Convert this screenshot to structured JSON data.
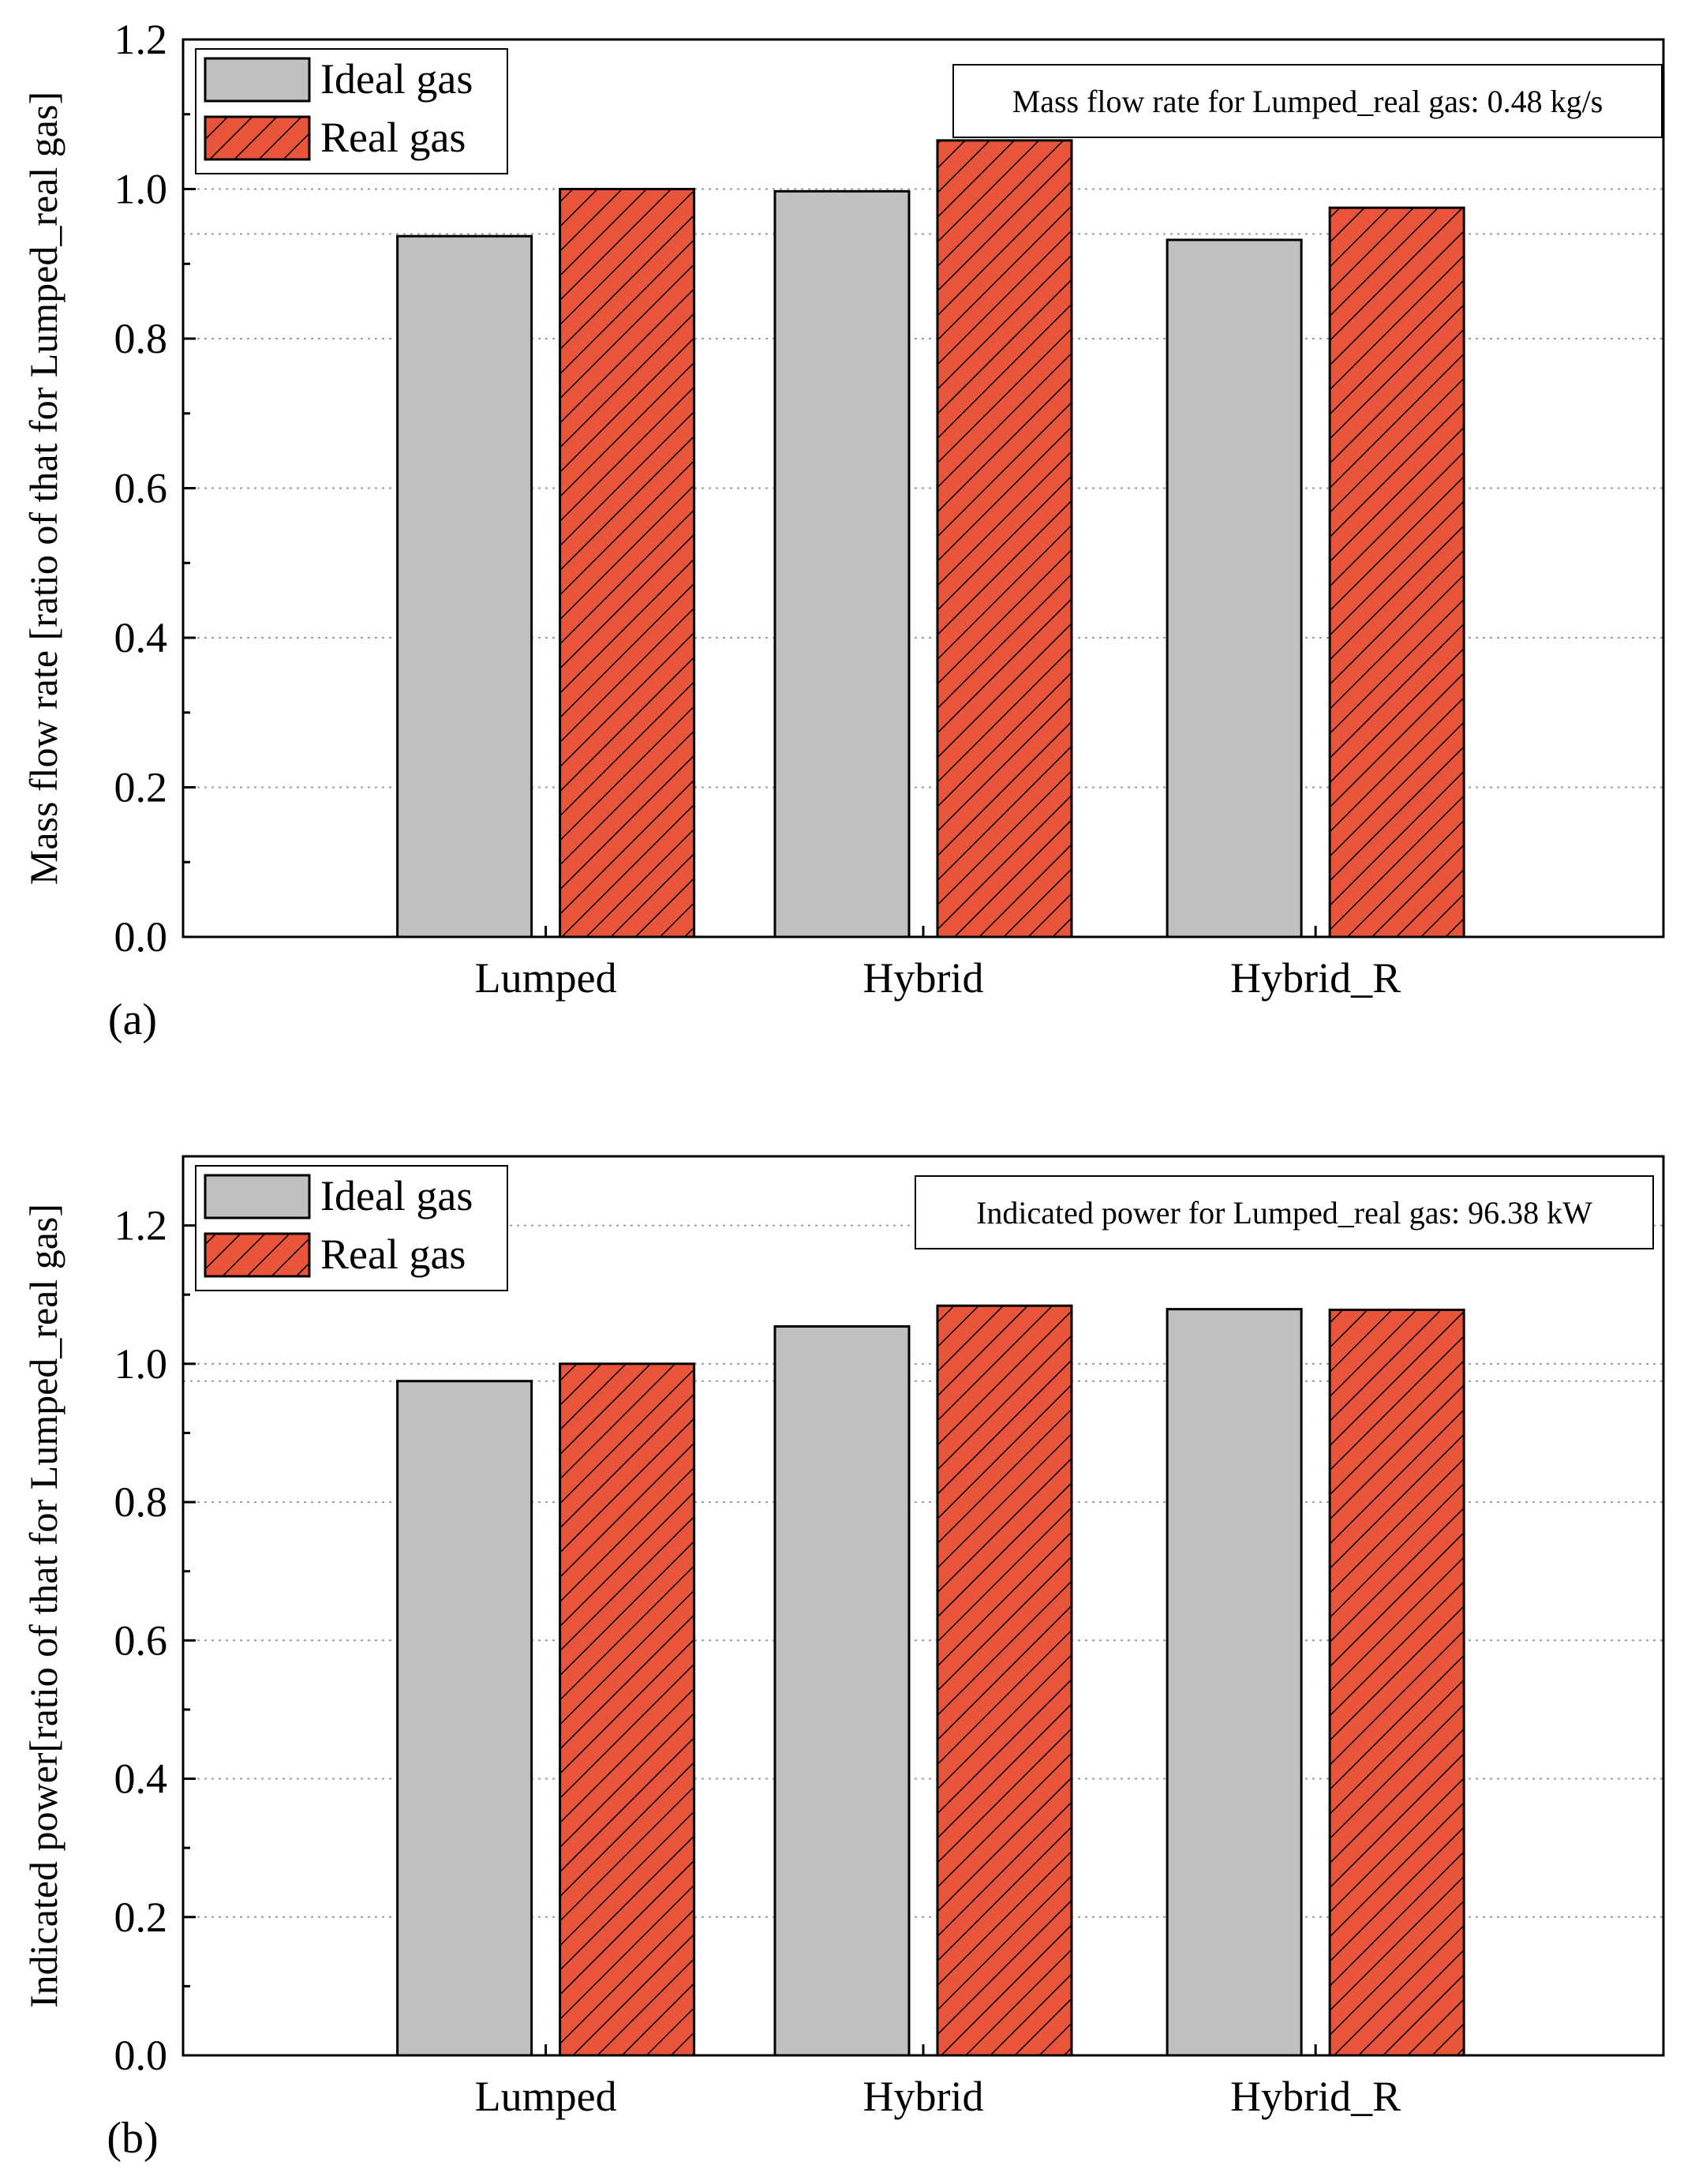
{
  "colors": {
    "ideal": "#c0c0c0",
    "real": "#e8553a",
    "hatch": "#000000",
    "grid": "#9a9a9a",
    "axis": "#000000"
  },
  "chart_data": [
    {
      "type": "bar",
      "panel_label": "(a)",
      "categories": [
        "Lumped",
        "Hybrid",
        "Hybrid_R"
      ],
      "series": [
        {
          "name": "Ideal gas",
          "values": [
            0.937,
            0.997,
            0.932
          ]
        },
        {
          "name": "Real gas",
          "values": [
            1.0,
            1.065,
            0.975
          ]
        }
      ],
      "ylabel": "Mass flow rate [ratio of that for Lumped_real gas]",
      "xlabel": "",
      "ylim": [
        0,
        1.2
      ],
      "yticks": [
        "0.0",
        "0.2",
        "0.4",
        "0.6",
        "0.8",
        "1.0",
        "1.2"
      ],
      "ytick_values": [
        0,
        0.2,
        0.4,
        0.6,
        0.8,
        1.0,
        1.2
      ],
      "grid_values": [
        0.2,
        0.4,
        0.6,
        0.8,
        0.94,
        1.0
      ],
      "legend": [
        "Ideal gas",
        "Real gas"
      ],
      "legend_position": "top-left",
      "annotation": "Mass flow rate for Lumped_real gas: 0.48 kg/s"
    },
    {
      "type": "bar",
      "panel_label": "(b)",
      "categories": [
        "Lumped",
        "Hybrid",
        "Hybrid_R"
      ],
      "series": [
        {
          "name": "Ideal gas",
          "values": [
            0.975,
            1.054,
            1.079
          ]
        },
        {
          "name": "Real gas",
          "values": [
            1.0,
            1.084,
            1.078
          ]
        }
      ],
      "ylabel": "Indicated power[ratio of that for Lumped_real gas]",
      "xlabel": "",
      "ylim": [
        0,
        1.3
      ],
      "yticks": [
        "0.0",
        "0.2",
        "0.4",
        "0.6",
        "0.8",
        "1.0",
        "1.2"
      ],
      "ytick_values": [
        0,
        0.2,
        0.4,
        0.6,
        0.8,
        1.0,
        1.2
      ],
      "grid_values": [
        0.2,
        0.4,
        0.6,
        0.8,
        0.975,
        1.0,
        1.2
      ],
      "legend": [
        "Ideal gas",
        "Real gas"
      ],
      "legend_position": "top-left",
      "annotation": "Indicated power for Lumped_real gas: 96.38 kW"
    }
  ]
}
